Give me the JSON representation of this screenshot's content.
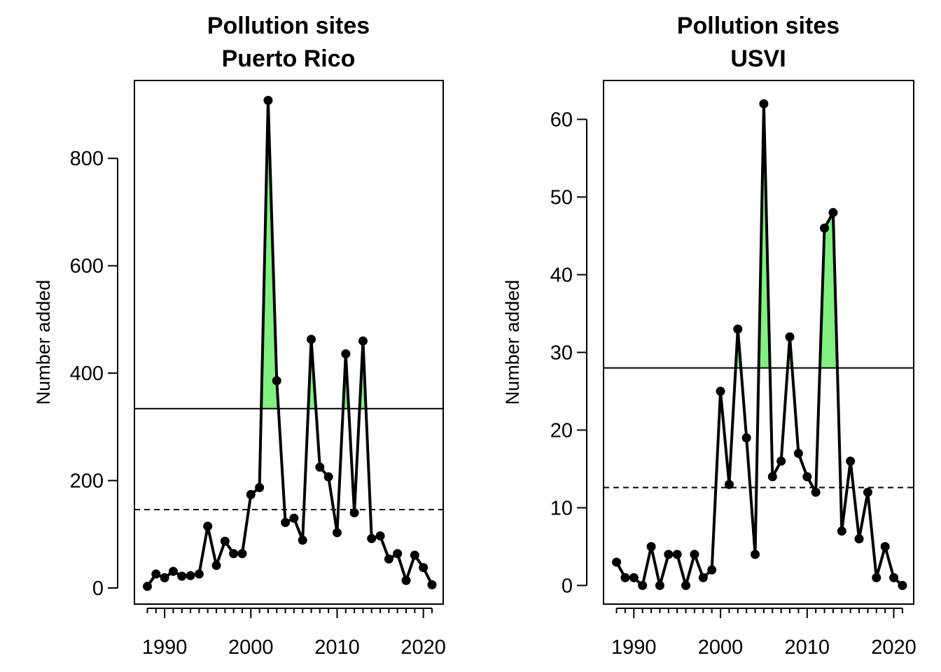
{
  "chart_data": [
    {
      "type": "line",
      "title": [
        "Pollution sites",
        "Puerto Rico"
      ],
      "ylabel": "Number added",
      "xlabel": "",
      "xlim": [
        1986.5,
        2022.3
      ],
      "ylim": [
        -30,
        945
      ],
      "xticks": [
        1990,
        2000,
        2010,
        2020
      ],
      "yticks": [
        0,
        200,
        400,
        600,
        800
      ],
      "minor_xticks_every": 1,
      "mean_line": 146,
      "threshold_line": 334,
      "fill_color": "#80f080",
      "series": [
        {
          "x": [
            1988,
            1989,
            1990,
            1991,
            1992,
            1993,
            1994,
            1995,
            1996,
            1997,
            1998,
            1999,
            2000,
            2001,
            2002,
            2003,
            2004,
            2005,
            2006,
            2007,
            2008,
            2009,
            2010,
            2011,
            2012,
            2013,
            2014,
            2015,
            2016,
            2017,
            2018,
            2019,
            2020,
            2021
          ],
          "values": [
            3,
            26,
            19,
            31,
            22,
            23,
            26,
            115,
            42,
            87,
            64,
            64,
            174,
            187,
            908,
            386,
            122,
            130,
            89,
            463,
            225,
            207,
            103,
            436,
            140,
            460,
            92,
            97,
            54,
            64,
            14,
            61,
            38,
            6
          ]
        }
      ]
    },
    {
      "type": "line",
      "title": [
        "Pollution sites",
        "USVI"
      ],
      "ylabel": "Number added",
      "xlabel": "",
      "xlim": [
        1986.5,
        2022.3
      ],
      "ylim": [
        -2.4,
        65
      ],
      "xticks": [
        1990,
        2000,
        2010,
        2020
      ],
      "yticks": [
        0,
        10,
        20,
        30,
        40,
        50,
        60
      ],
      "minor_xticks_every": 1,
      "mean_line": 12.6,
      "threshold_line": 28,
      "fill_color": "#80f080",
      "series": [
        {
          "x": [
            1988,
            1989,
            1990,
            1991,
            1992,
            1993,
            1994,
            1995,
            1996,
            1997,
            1998,
            1999,
            2000,
            2001,
            2002,
            2003,
            2004,
            2005,
            2006,
            2007,
            2008,
            2009,
            2010,
            2011,
            2012,
            2013,
            2014,
            2015,
            2016,
            2017,
            2018,
            2019,
            2020,
            2021
          ],
          "values": [
            3,
            1,
            1,
            0,
            5,
            0,
            4,
            4,
            0,
            4,
            1,
            2,
            25,
            13,
            33,
            19,
            4,
            62,
            14,
            16,
            32,
            17,
            14,
            12,
            46,
            48,
            7,
            16,
            6,
            12,
            1,
            5,
            1,
            0
          ]
        }
      ]
    }
  ]
}
